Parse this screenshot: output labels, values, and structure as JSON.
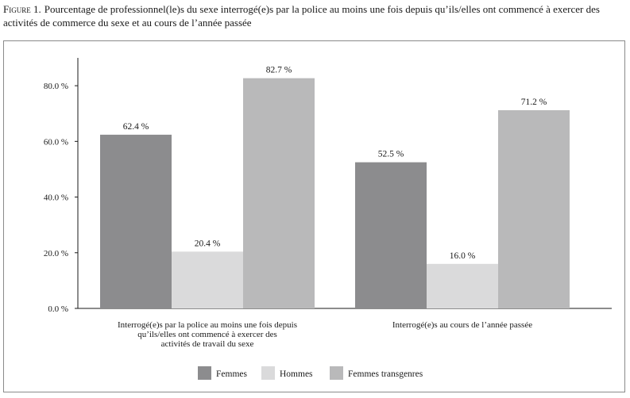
{
  "caption": {
    "figure_label": "Figure 1.",
    "text": "Pourcentage de professionnel(le)s du sexe interrogé(e)s par la police au moins une fois depuis qu’ils/elles ont commencé à exercer des activités de commerce du sexe et au cours de l’année passée"
  },
  "chart_data": {
    "type": "bar",
    "title": "",
    "xlabel": "",
    "ylabel": "",
    "ylim": [
      0,
      90
    ],
    "yticks": [
      0,
      20,
      40,
      60,
      80
    ],
    "ytick_labels": [
      "0.0 %",
      "20.0 %",
      "40.0 %",
      "60.0 %",
      "80.0 %"
    ],
    "categories": [
      [
        "Interrogé(e)s par la police au moins une fois depuis",
        "qu’ils/elles ont commencé à exercer des",
        "activités de travail du sexe"
      ],
      [
        "Interrogé(e)s au cours de l’année passée"
      ]
    ],
    "series": [
      {
        "name": "Femmes",
        "color": "#8c8c8e",
        "values": [
          62.4,
          52.5
        ],
        "labels": [
          "62.4 %",
          "52.5 %"
        ]
      },
      {
        "name": "Hommes",
        "color": "#dadadb",
        "values": [
          20.4,
          16.0
        ],
        "labels": [
          "20.4 %",
          "16.0 %"
        ]
      },
      {
        "name": "Femmes transgenres",
        "color": "#b9b9ba",
        "values": [
          82.7,
          71.2
        ],
        "labels": [
          "82.7 %",
          "71.2 %"
        ]
      }
    ],
    "grid": false,
    "legend_position": "bottom-center"
  }
}
